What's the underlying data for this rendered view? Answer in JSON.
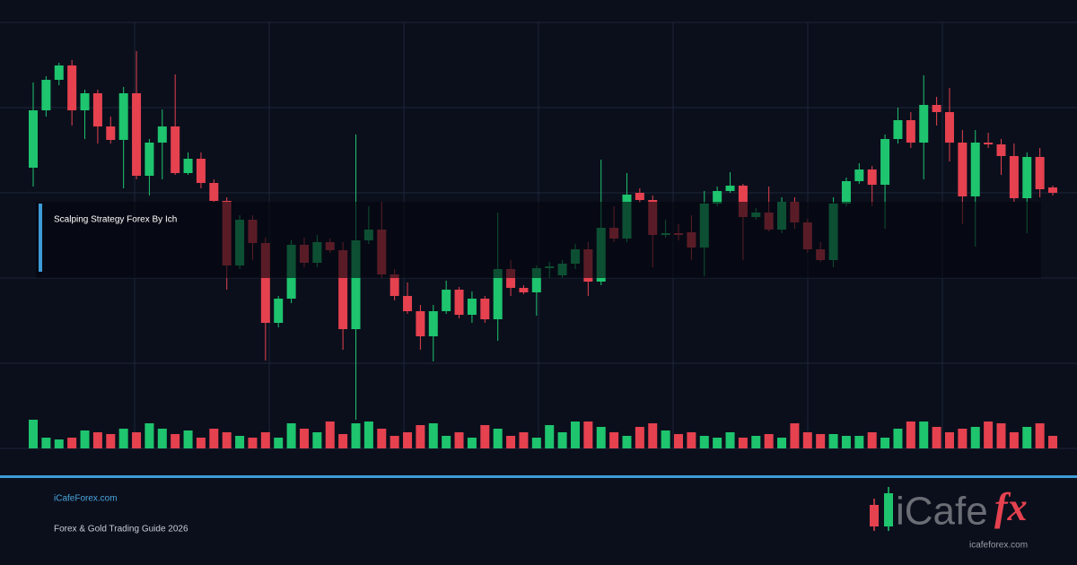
{
  "chart_data": {
    "type": "candlestick",
    "title": "Scalping Strategy Forex By Ich",
    "up_color": "#1ec46e",
    "down_color": "#e5414f",
    "ylim": [
      0,
      500
    ],
    "open": [
      313,
      377,
      411,
      427,
      377,
      396,
      359,
      344,
      396,
      304,
      341,
      359,
      307,
      323,
      296,
      276,
      204,
      255,
      229,
      140,
      167,
      227,
      207,
      230,
      221,
      133,
      232,
      244,
      194,
      170,
      153,
      125,
      153,
      177,
      149,
      167,
      144,
      200,
      179,
      174,
      201,
      193,
      206,
      222,
      186,
      246,
      234,
      285,
      277,
      238,
      240,
      241,
      224,
      273,
      287,
      293,
      258,
      263,
      244,
      275,
      252,
      222,
      210,
      273,
      298,
      311,
      294,
      345,
      366,
      341,
      383,
      375,
      341,
      281,
      341,
      339,
      326,
      279,
      325,
      291
    ],
    "high": [
      408,
      415,
      430,
      433,
      400,
      400,
      370,
      403,
      443,
      345,
      378,
      417,
      330,
      330,
      300,
      280,
      260,
      260,
      235,
      170,
      232,
      235,
      238,
      234,
      230,
      350,
      270,
      275,
      200,
      185,
      160,
      160,
      187,
      180,
      175,
      170,
      263,
      210,
      182,
      204,
      208,
      210,
      228,
      230,
      322,
      270,
      307,
      290,
      282,
      255,
      250,
      260,
      287,
      292,
      308,
      295,
      268,
      292,
      280,
      280,
      256,
      230,
      280,
      302,
      318,
      315,
      350,
      380,
      375,
      416,
      392,
      402,
      355,
      355,
      352,
      345,
      340,
      330,
      335,
      293
    ],
    "low": [
      292,
      370,
      405,
      360,
      345,
      340,
      340,
      290,
      300,
      282,
      300,
      305,
      305,
      290,
      275,
      177,
      200,
      210,
      98,
      135,
      162,
      202,
      202,
      218,
      110,
      32,
      228,
      190,
      165,
      150,
      110,
      97,
      150,
      145,
      140,
      140,
      120,
      170,
      172,
      148,
      190,
      190,
      200,
      170,
      182,
      230,
      230,
      274,
      202,
      235,
      232,
      210,
      192,
      270,
      285,
      210,
      255,
      242,
      240,
      245,
      218,
      208,
      202,
      270,
      295,
      270,
      245,
      340,
      335,
      300,
      360,
      320,
      250,
      225,
      335,
      305,
      275,
      240,
      280,
      282
    ],
    "close": [
      377,
      411,
      427,
      377,
      396,
      359,
      344,
      396,
      304,
      341,
      359,
      307,
      323,
      296,
      276,
      204,
      255,
      229,
      140,
      167,
      227,
      207,
      230,
      221,
      133,
      232,
      244,
      194,
      170,
      153,
      125,
      153,
      177,
      149,
      167,
      144,
      200,
      179,
      174,
      201,
      203,
      206,
      222,
      186,
      246,
      234,
      283,
      277,
      238,
      240,
      238,
      224,
      273,
      287,
      293,
      258,
      263,
      244,
      275,
      252,
      222,
      210,
      273,
      298,
      311,
      294,
      345,
      366,
      341,
      383,
      375,
      341,
      281,
      341,
      339,
      326,
      279,
      325,
      289,
      285
    ],
    "volume": [
      32,
      12,
      10,
      12,
      20,
      18,
      16,
      22,
      18,
      28,
      22,
      16,
      20,
      12,
      22,
      18,
      14,
      12,
      18,
      12,
      28,
      22,
      18,
      30,
      16,
      28,
      30,
      22,
      14,
      18,
      26,
      28,
      14,
      18,
      12,
      26,
      22,
      14,
      18,
      12,
      26,
      18,
      30,
      30,
      24,
      18,
      14,
      24,
      28,
      20,
      16,
      18,
      14,
      12,
      18,
      12,
      14,
      16,
      12,
      28,
      18,
      16,
      16,
      14,
      14,
      18,
      12,
      22,
      30,
      30,
      24,
      18,
      22,
      24,
      30,
      28,
      18,
      24,
      28,
      14
    ]
  },
  "footer": {
    "site": "iCafeForex.com",
    "tagline": "Forex & Gold Trading Guide 2026"
  },
  "logo": {
    "brand": "iCafe",
    "mark": "fx",
    "url": "icafeforex.com"
  }
}
